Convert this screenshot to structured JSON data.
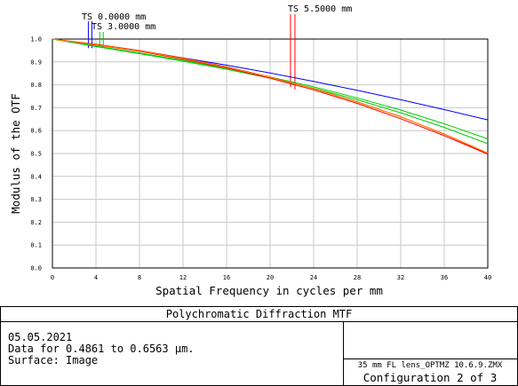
{
  "chart_data": {
    "type": "line",
    "title": "Polychromatic Diffraction MTF",
    "xlabel": "Spatial Frequency in cycles per mm",
    "ylabel": "Modulus of the OTF",
    "xlim": [
      0,
      40
    ],
    "ylim": [
      0,
      1.0
    ],
    "xticks": [
      "0",
      "4",
      "8",
      "12",
      "16",
      "20",
      "24",
      "28",
      "32",
      "36",
      "40"
    ],
    "yticks": [
      "0.0",
      "0.1",
      "0.2",
      "0.3",
      "0.4",
      "0.5",
      "0.6",
      "0.7",
      "0.8",
      "0.9",
      "1.0"
    ],
    "grid": true,
    "field_labels": [
      {
        "text": "TS 0.0000 mm",
        "x": 3.3
      },
      {
        "text": "TS 3.0000 mm",
        "x": 4.1
      },
      {
        "text": "TS 5.5000 mm",
        "x": 22.2
      }
    ],
    "series": [
      {
        "color": "#0000ff",
        "x": [
          0,
          4,
          8,
          12,
          16,
          20,
          24,
          28,
          32,
          36,
          40
        ],
        "values": [
          1.0,
          0.974,
          0.948,
          0.918,
          0.886,
          0.852,
          0.815,
          0.776,
          0.735,
          0.692,
          0.647
        ]
      },
      {
        "color": "#00cc00",
        "x": [
          0,
          4,
          8,
          12,
          16,
          20,
          24,
          28,
          32,
          36,
          40
        ],
        "values": [
          1.0,
          0.967,
          0.936,
          0.903,
          0.868,
          0.829,
          0.785,
          0.735,
          0.678,
          0.614,
          0.543
        ]
      },
      {
        "color": "#00cc00",
        "x": [
          0,
          4,
          8,
          12,
          16,
          20,
          24,
          28,
          32,
          36,
          40
        ],
        "values": [
          1.0,
          0.969,
          0.939,
          0.907,
          0.872,
          0.834,
          0.791,
          0.743,
          0.69,
          0.63,
          0.564
        ]
      },
      {
        "color": "#ff0000",
        "x": [
          0,
          4,
          8,
          12,
          16,
          20,
          24,
          28,
          32,
          36,
          40
        ],
        "values": [
          1.0,
          0.974,
          0.946,
          0.912,
          0.874,
          0.829,
          0.778,
          0.719,
          0.652,
          0.578,
          0.497
        ]
      },
      {
        "color": "#ff0000",
        "x": [
          0,
          4,
          8,
          12,
          16,
          20,
          24,
          28,
          32,
          36,
          40
        ],
        "values": [
          1.0,
          0.977,
          0.95,
          0.917,
          0.879,
          0.834,
          0.783,
          0.726,
          0.661,
          0.585,
          0.499
        ]
      },
      {
        "color": "#ff8c00",
        "x": [
          0,
          4,
          8,
          12,
          16,
          20,
          24,
          28,
          32,
          36,
          40
        ],
        "values": [
          1.0,
          0.975,
          0.948,
          0.915,
          0.877,
          0.833,
          0.783,
          0.725,
          0.66,
          0.586,
          0.502
        ]
      }
    ]
  },
  "info": {
    "title": "Polychromatic Diffraction MTF",
    "date": "05.05.2021",
    "data_line": "Data for 0.4861 to 0.6563 µm.",
    "surface_line": "Surface: Image",
    "lens_file": "35 mm FL lens_OPTMZ 10.6.9.ZMX",
    "configuration": "Configuration 2 of 3"
  }
}
